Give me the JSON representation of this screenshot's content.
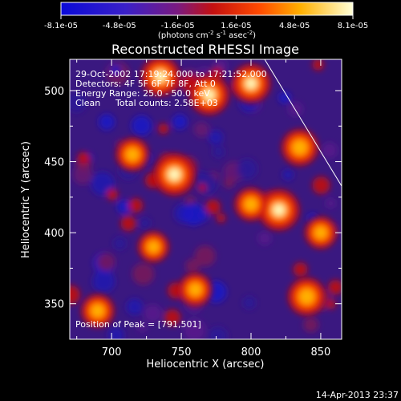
{
  "chart_data": {
    "type": "heatmap",
    "title": "Reconstructed RHESSI Image",
    "xlabel": "Heliocentric X (arcsec)",
    "ylabel": "Heliocentric Y (arcsec)",
    "xlim": [
      670,
      865
    ],
    "ylim": [
      325,
      522
    ],
    "xticks": [
      700,
      750,
      800,
      850
    ],
    "yticks": [
      350,
      400,
      450,
      500
    ],
    "colorbar": {
      "ticks": [
        "-8.1e-05",
        "-4.8e-05",
        "-1.6e-05",
        "1.6e-05",
        "4.8e-05",
        "8.1e-05"
      ],
      "min": -8.1e-05,
      "max": 8.1e-05,
      "unit_parts": [
        "(photons cm",
        "-2",
        " s",
        "-1",
        " asec",
        "-2",
        ")"
      ]
    },
    "info_lines": [
      "29-Oct-2002 17:19:24.000 to 17:21:52.000",
      "Detectors: 4F 5F 6F 7F 8F, Att 0",
      "Energy Range: 25.0 - 50.0 keV"
    ],
    "clean_label": "Clean",
    "total_counts": "Total counts: 2.58E+03",
    "peak_label": "Position of Peak = [791,501]",
    "bright_sources": [
      {
        "x": 745,
        "y": 441,
        "level": 1.0
      },
      {
        "x": 820,
        "y": 416,
        "level": 0.95
      },
      {
        "x": 770,
        "y": 497,
        "level": 0.9
      },
      {
        "x": 735,
        "y": 510,
        "level": 0.85
      },
      {
        "x": 800,
        "y": 505,
        "level": 0.85
      },
      {
        "x": 835,
        "y": 460,
        "level": 0.75
      },
      {
        "x": 840,
        "y": 355,
        "level": 0.8
      },
      {
        "x": 715,
        "y": 455,
        "level": 0.6
      },
      {
        "x": 800,
        "y": 420,
        "level": 0.6
      },
      {
        "x": 690,
        "y": 345,
        "level": 0.6
      },
      {
        "x": 760,
        "y": 360,
        "level": 0.6
      },
      {
        "x": 850,
        "y": 400,
        "level": 0.55
      },
      {
        "x": 730,
        "y": 390,
        "level": 0.5
      }
    ]
  },
  "footer": {
    "timestamp": "14-Apr-2013 23:37"
  }
}
